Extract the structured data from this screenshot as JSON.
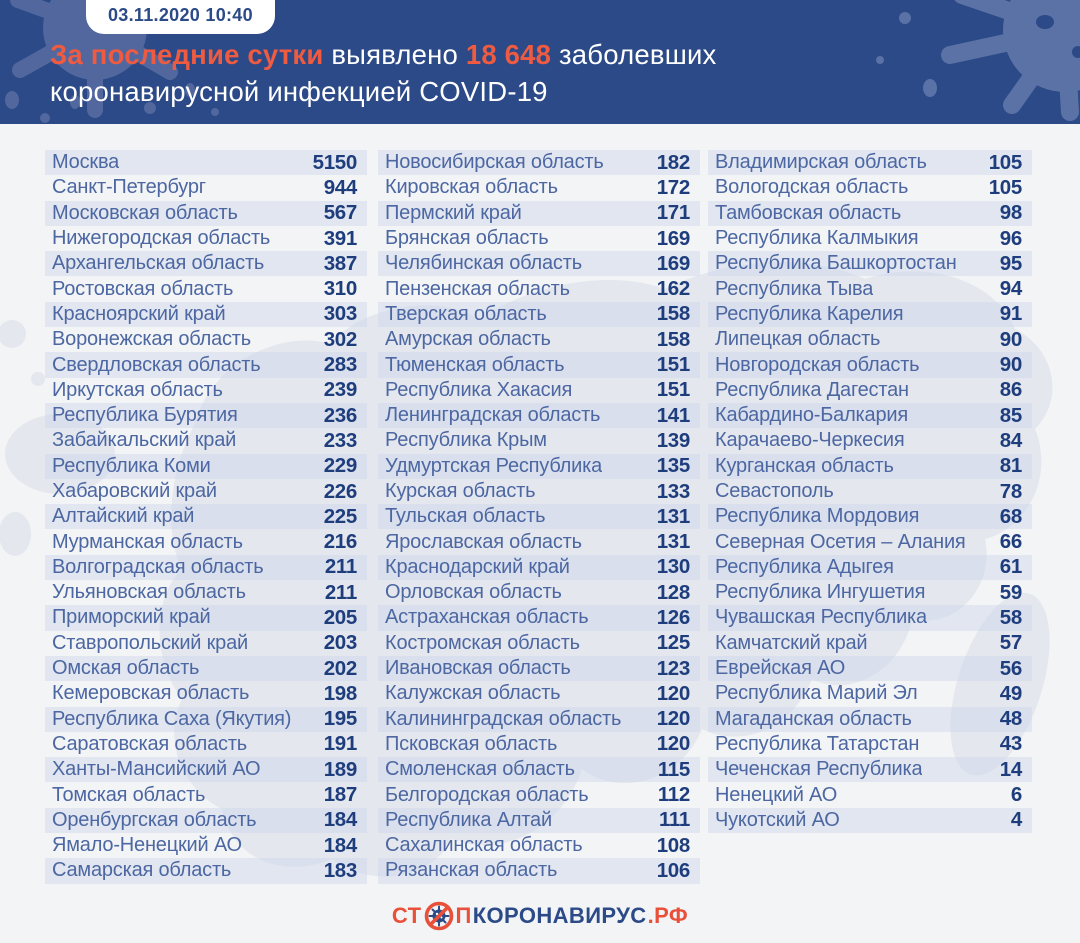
{
  "header": {
    "timestamp": "03.11.2020 10:40",
    "title": {
      "highlight1": "За последние сутки",
      "text1": " выявлено ",
      "highlight2": "18 648",
      "text2": " заболевших",
      "line2": "коронавирусной инфекцией COVID-19"
    }
  },
  "colors": {
    "header_bg": "#2b4a87",
    "accent_orange": "#ef5b40",
    "logo_red": "#e8503a",
    "row_stripe": "#e7ecf4",
    "region_text": "#4c67a2",
    "value_text": "#1e3d7d",
    "page_bg": "#f3f4f6"
  },
  "table": {
    "columns": [
      {
        "rows": [
          {
            "region": "Москва",
            "value": 5150
          },
          {
            "region": "Санкт-Петербург",
            "value": 944
          },
          {
            "region": "Московская область",
            "value": 567
          },
          {
            "region": "Нижегородская область",
            "value": 391
          },
          {
            "region": "Архангельская область",
            "value": 387
          },
          {
            "region": "Ростовская область",
            "value": 310
          },
          {
            "region": "Красноярский край",
            "value": 303
          },
          {
            "region": "Воронежская область",
            "value": 302
          },
          {
            "region": "Свердловская область",
            "value": 283
          },
          {
            "region": "Иркутская область",
            "value": 239
          },
          {
            "region": "Республика Бурятия",
            "value": 236
          },
          {
            "region": "Забайкальский край",
            "value": 233
          },
          {
            "region": "Республика Коми",
            "value": 229
          },
          {
            "region": "Хабаровский край",
            "value": 226
          },
          {
            "region": "Алтайский край",
            "value": 225
          },
          {
            "region": "Мурманская область",
            "value": 216
          },
          {
            "region": "Волгоградская область",
            "value": 211
          },
          {
            "region": "Ульяновская область",
            "value": 211
          },
          {
            "region": "Приморский край",
            "value": 205
          },
          {
            "region": "Ставропольский край",
            "value": 203
          },
          {
            "region": "Омская область",
            "value": 202
          },
          {
            "region": "Кемеровская область",
            "value": 198
          },
          {
            "region": "Республика Саха (Якутия)",
            "value": 195
          },
          {
            "region": "Саратовская область",
            "value": 191
          },
          {
            "region": "Ханты-Мансийский АО",
            "value": 189
          },
          {
            "region": "Томская область",
            "value": 187
          },
          {
            "region": "Оренбургская область",
            "value": 184
          },
          {
            "region": "Ямало-Ненецкий АО",
            "value": 184
          },
          {
            "region": "Самарская область",
            "value": 183
          }
        ]
      },
      {
        "rows": [
          {
            "region": "Новосибирская область",
            "value": 182
          },
          {
            "region": "Кировская область",
            "value": 172
          },
          {
            "region": "Пермский край",
            "value": 171
          },
          {
            "region": "Брянская область",
            "value": 169
          },
          {
            "region": "Челябинская область",
            "value": 169
          },
          {
            "region": "Пензенская область",
            "value": 162
          },
          {
            "region": "Тверская область",
            "value": 158
          },
          {
            "region": "Амурская область",
            "value": 158
          },
          {
            "region": "Тюменская область",
            "value": 151
          },
          {
            "region": "Республика Хакасия",
            "value": 151
          },
          {
            "region": "Ленинградская область",
            "value": 141
          },
          {
            "region": "Республика Крым",
            "value": 139
          },
          {
            "region": "Удмуртская Республика",
            "value": 135
          },
          {
            "region": "Курская область",
            "value": 133
          },
          {
            "region": "Тульская область",
            "value": 131
          },
          {
            "region": "Ярославская область",
            "value": 131
          },
          {
            "region": "Краснодарский край",
            "value": 130
          },
          {
            "region": "Орловская область",
            "value": 128
          },
          {
            "region": "Астраханская область",
            "value": 126
          },
          {
            "region": "Костромская область",
            "value": 125
          },
          {
            "region": "Ивановская область",
            "value": 123
          },
          {
            "region": "Калужская область",
            "value": 120
          },
          {
            "region": "Калининградская область",
            "value": 120
          },
          {
            "region": "Псковская область",
            "value": 120
          },
          {
            "region": "Смоленская область",
            "value": 115
          },
          {
            "region": "Белгородская область",
            "value": 112
          },
          {
            "region": "Республика Алтай",
            "value": 111
          },
          {
            "region": "Сахалинская область",
            "value": 108
          },
          {
            "region": "Рязанская область",
            "value": 106
          }
        ]
      },
      {
        "rows": [
          {
            "region": "Владимирская область",
            "value": 105
          },
          {
            "region": "Вологодская область",
            "value": 105
          },
          {
            "region": "Тамбовская область",
            "value": 98
          },
          {
            "region": "Республика Калмыкия",
            "value": 96
          },
          {
            "region": "Республика Башкортостан",
            "value": 95
          },
          {
            "region": "Республика Тыва",
            "value": 94
          },
          {
            "region": "Республика Карелия",
            "value": 91
          },
          {
            "region": "Липецкая область",
            "value": 90
          },
          {
            "region": "Новгородская область",
            "value": 90
          },
          {
            "region": "Республика Дагестан",
            "value": 86
          },
          {
            "region": "Кабардино-Балкария",
            "value": 85
          },
          {
            "region": "Карачаево-Черкесия",
            "value": 84
          },
          {
            "region": "Курганская область",
            "value": 81
          },
          {
            "region": "Севастополь",
            "value": 78
          },
          {
            "region": "Республика Мордовия",
            "value": 68
          },
          {
            "region": "Северная Осетия – Алания",
            "value": 66
          },
          {
            "region": "Республика Адыгея",
            "value": 61
          },
          {
            "region": "Республика Ингушетия",
            "value": 59
          },
          {
            "region": "Чувашская Республика",
            "value": 58
          },
          {
            "region": "Камчатский край",
            "value": 57
          },
          {
            "region": "Еврейская АО",
            "value": 56
          },
          {
            "region": "Республика Марий Эл",
            "value": 49
          },
          {
            "region": "Магаданская область",
            "value": 48
          },
          {
            "region": "Республика Татарстан",
            "value": 43
          },
          {
            "region": "Чеченская Республика",
            "value": 14
          },
          {
            "region": "Ненецкий АО",
            "value": 6
          },
          {
            "region": "Чукотский АО",
            "value": 4
          }
        ]
      }
    ]
  },
  "footer": {
    "stop_prefix": "СТ",
    "stop_suffix": "П",
    "brand": "КОРОНАВИРУС",
    "domain": ".РФ"
  }
}
